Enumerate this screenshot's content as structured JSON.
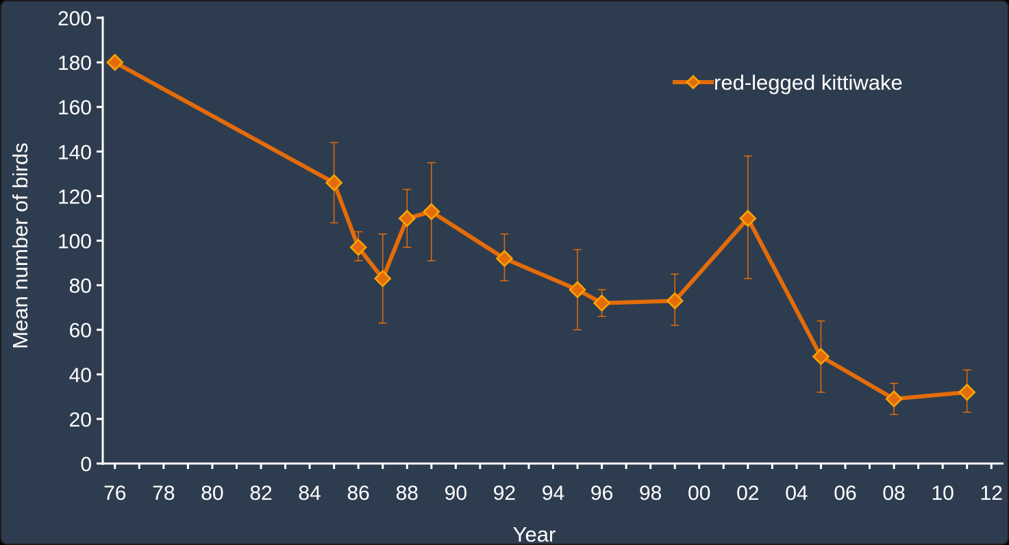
{
  "chart_data": {
    "type": "line",
    "title": "",
    "xlabel": "Year",
    "ylabel": "Mean number of birds",
    "xlim": [
      1975.5,
      2012.5
    ],
    "ylim": [
      0,
      200
    ],
    "y_ticks": [
      0,
      20,
      40,
      60,
      80,
      100,
      120,
      140,
      160,
      180,
      200
    ],
    "x_tick_labels": [
      "76",
      "78",
      "80",
      "82",
      "84",
      "86",
      "88",
      "90",
      "92",
      "94",
      "96",
      "98",
      "00",
      "02",
      "04",
      "06",
      "08",
      "10",
      "12"
    ],
    "x_tick_years": [
      1976,
      1978,
      1980,
      1982,
      1984,
      1986,
      1988,
      1990,
      1992,
      1994,
      1996,
      1998,
      2000,
      2002,
      2004,
      2006,
      2008,
      2010,
      2012
    ],
    "grid": false,
    "legend_position": "top-right",
    "series": [
      {
        "name": "red-legged kittiwake",
        "color": "#e36c0a",
        "marker_color": "#ffa500",
        "marker": "diamond",
        "x": [
          1976,
          1985,
          1986,
          1987,
          1988,
          1989,
          1992,
          1995,
          1996,
          1999,
          2002,
          2005,
          2008,
          2011
        ],
        "y": [
          180,
          126,
          97,
          83,
          110,
          113,
          92,
          78,
          72,
          73,
          110,
          48,
          29,
          32
        ],
        "error_low": [
          null,
          108,
          91,
          63,
          97,
          91,
          82,
          60,
          66,
          62,
          83,
          32,
          22,
          23
        ],
        "error_high": [
          null,
          144,
          104,
          103,
          123,
          135,
          103,
          96,
          78,
          85,
          138,
          64,
          36,
          42
        ]
      }
    ]
  }
}
